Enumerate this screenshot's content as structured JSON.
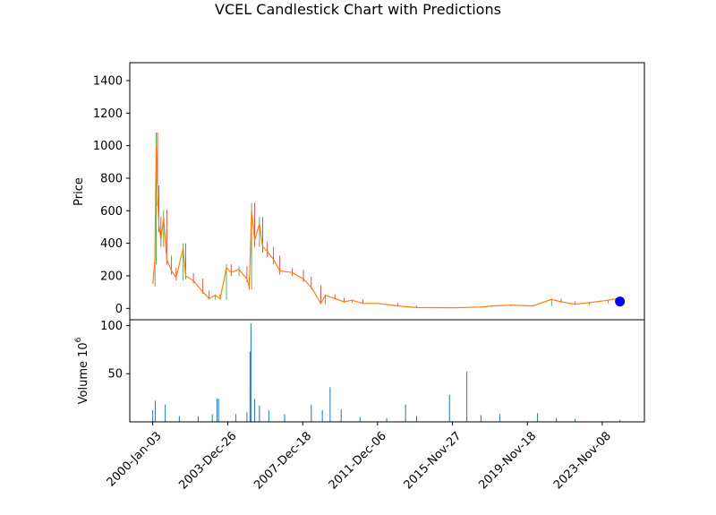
{
  "chart_data": {
    "type": "candlestick",
    "title": "VCEL Candlestick Chart with Predictions",
    "price_panel": {
      "ylabel": "Price",
      "ylim": [
        -70,
        1510
      ],
      "yticks": [
        0,
        200,
        400,
        600,
        800,
        1000,
        1200,
        1400
      ],
      "series": [
        {
          "kind": "close",
          "color": "#ff7f0e",
          "points": [
            [
              "2000-01-03",
              150
            ],
            [
              "2000-02-15",
              300
            ],
            [
              "2000-03-10",
              1000
            ],
            [
              "2000-04-05",
              700
            ],
            [
              "2000-05-01",
              520
            ],
            [
              "2000-06-10",
              420
            ],
            [
              "2000-08-01",
              560
            ],
            [
              "2000-10-01",
              300
            ],
            [
              "2001-01-01",
              230
            ],
            [
              "2001-04-01",
              190
            ],
            [
              "2001-08-15",
              370
            ],
            [
              "2001-10-01",
              200
            ],
            [
              "2002-03-01",
              170
            ],
            [
              "2002-09-01",
              100
            ],
            [
              "2003-01-01",
              60
            ],
            [
              "2003-05-01",
              80
            ],
            [
              "2003-08-01",
              60
            ],
            [
              "2003-12-01",
              250
            ],
            [
              "2004-03-01",
              220
            ],
            [
              "2004-08-01",
              240
            ],
            [
              "2005-01-01",
              180
            ],
            [
              "2005-02-15",
              130
            ],
            [
              "2005-04-01",
              600
            ],
            [
              "2005-06-01",
              420
            ],
            [
              "2005-09-01",
              520
            ],
            [
              "2005-11-01",
              380
            ],
            [
              "2006-02-01",
              350
            ],
            [
              "2006-06-01",
              300
            ],
            [
              "2006-10-01",
              230
            ],
            [
              "2007-06-01",
              220
            ],
            [
              "2008-01-01",
              180
            ],
            [
              "2008-06-01",
              130
            ],
            [
              "2008-12-01",
              30
            ],
            [
              "2009-03-01",
              80
            ],
            [
              "2009-09-01",
              60
            ],
            [
              "2010-03-01",
              40
            ],
            [
              "2010-08-01",
              50
            ],
            [
              "2011-03-01",
              30
            ],
            [
              "2012-01-01",
              30
            ],
            [
              "2013-01-01",
              15
            ],
            [
              "2014-01-01",
              5
            ],
            [
              "2016-01-01",
              4
            ],
            [
              "2017-06-01",
              8
            ],
            [
              "2018-01-01",
              15
            ],
            [
              "2019-01-01",
              20
            ],
            [
              "2020-03-01",
              15
            ],
            [
              "2021-03-01",
              55
            ],
            [
              "2021-09-01",
              40
            ],
            [
              "2022-06-01",
              25
            ],
            [
              "2023-03-01",
              35
            ],
            [
              "2024-03-01",
              50
            ],
            [
              "2024-09-01",
              60
            ]
          ]
        },
        {
          "kind": "prediction",
          "color": "#0000ff",
          "points": [
            [
              "2024-10-15",
              42
            ]
          ]
        }
      ]
    },
    "volume_panel": {
      "ylabel": "Volume  10",
      "ylabel_exponent": "6",
      "ylim": [
        0,
        106
      ],
      "yticks": [
        50,
        100
      ],
      "color": "#1f77b4",
      "points": [
        [
          "2000-01-03",
          12
        ],
        [
          "2000-02-20",
          22
        ],
        [
          "2000-09-01",
          18
        ],
        [
          "2001-06-01",
          6
        ],
        [
          "2002-06-01",
          6
        ],
        [
          "2003-03-01",
          8
        ],
        [
          "2003-06-01",
          24
        ],
        [
          "2003-07-01",
          24
        ],
        [
          "2004-06-01",
          8
        ],
        [
          "2005-01-01",
          10
        ],
        [
          "2005-03-01",
          73
        ],
        [
          "2005-03-20",
          102
        ],
        [
          "2005-06-01",
          24
        ],
        [
          "2005-09-01",
          17
        ],
        [
          "2006-03-01",
          12
        ],
        [
          "2007-01-01",
          8
        ],
        [
          "2008-06-01",
          18
        ],
        [
          "2009-01-01",
          12
        ],
        [
          "2009-06-01",
          36
        ],
        [
          "2010-01-01",
          13
        ],
        [
          "2011-01-01",
          5
        ],
        [
          "2012-06-01",
          4
        ],
        [
          "2013-06-01",
          18
        ],
        [
          "2014-01-01",
          6
        ],
        [
          "2015-10-01",
          28
        ],
        [
          "2016-09-01",
          52
        ],
        [
          "2017-06-01",
          7
        ],
        [
          "2018-06-01",
          8
        ],
        [
          "2020-06-01",
          9
        ],
        [
          "2021-06-01",
          4
        ],
        [
          "2022-06-01",
          3
        ],
        [
          "2024-10-15",
          2
        ]
      ]
    },
    "x_axis": {
      "type": "date",
      "xlim": [
        "1998-10-15",
        "2026-02-01"
      ],
      "tick_dates": [
        "2000-01-03",
        "2003-12-26",
        "2007-12-18",
        "2011-12-06",
        "2015-11-27",
        "2019-11-18",
        "2023-11-08"
      ],
      "tick_labels": [
        "2000-Jan-03",
        "2003-Dec-26",
        "2007-Dec-18",
        "2011-Dec-06",
        "2015-Nov-27",
        "2019-Nov-18",
        "2023-Nov-08"
      ]
    },
    "colors": {
      "up": "#2ca02c",
      "down": "#d62728",
      "close": "#ff7f0e",
      "volume": "#1f77b4",
      "prediction": "#0000ff"
    }
  }
}
